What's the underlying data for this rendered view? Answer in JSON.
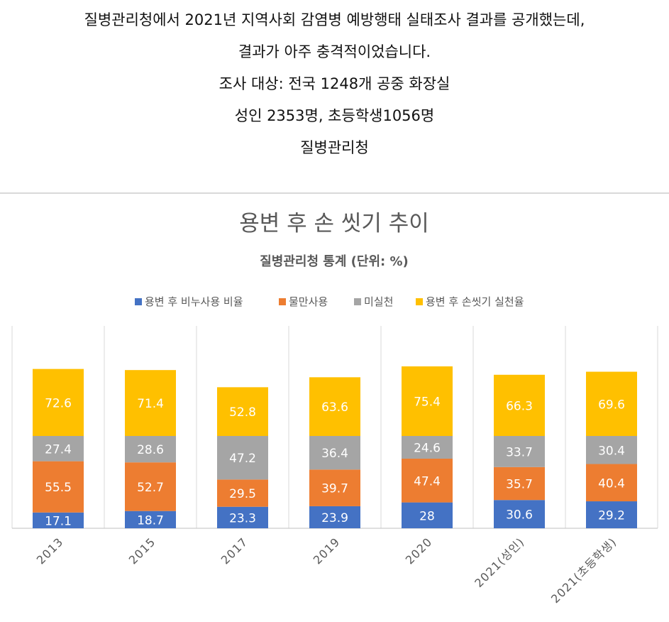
{
  "intro": {
    "lines": [
      "질병관리청에서 2021년 지역사회 감염병 예방행태 실태조사 결과를 공개했는데,",
      "결과가 아주 충격적이었습니다.",
      "조사 대상: 전국 1248개 공중 화장실",
      "성인 2353명, 초등학생1056명",
      "질병관리청"
    ]
  },
  "chart_data": {
    "type": "bar",
    "stacked": true,
    "title": "용변 후 손 씻기 추이",
    "subtitle": "질병관리청 통계 (단위: %)",
    "legend_position": "top",
    "categories": [
      "2013",
      "2015",
      "2017",
      "2019",
      "2020",
      "2021(성인)",
      "2021(초등학생)"
    ],
    "series": [
      {
        "name": "용변 후 비누사용 비율",
        "color": "#4472C4",
        "label_color": "#ffffff",
        "values": [
          17.1,
          18.7,
          23.3,
          23.9,
          28,
          30.6,
          29.2
        ]
      },
      {
        "name": "물만사용",
        "color": "#ED7D31",
        "label_color": "#ffffff",
        "values": [
          55.5,
          52.7,
          29.5,
          39.7,
          47.4,
          35.7,
          40.4
        ]
      },
      {
        "name": "미실천",
        "color": "#A5A5A5",
        "label_color": "#ffffff",
        "values": [
          27.4,
          28.6,
          47.2,
          36.4,
          24.6,
          33.7,
          30.4
        ]
      },
      {
        "name": "용변 후 손씻기 실천율",
        "color": "#FFC000",
        "label_color": "#ffffff",
        "values": [
          72.6,
          71.4,
          52.8,
          63.6,
          75.4,
          66.3,
          69.6
        ]
      }
    ],
    "value_labels": [
      [
        "17.1",
        "18.7",
        "23.3",
        "23.9",
        "28",
        "30.6",
        "29.2"
      ],
      [
        "55.5",
        "52.7",
        "29.5",
        "39.7",
        "47.4",
        "35.7",
        "40.4"
      ],
      [
        "27.4",
        "28.6",
        "47.2",
        "36.4",
        "24.6",
        "33.7",
        "30.4"
      ],
      [
        "72.6",
        "71.4",
        "52.8",
        "63.6",
        "75.4",
        "66.3",
        "69.6"
      ]
    ],
    "ylim": [
      0,
      180
    ],
    "grid": "vertical separators",
    "xlabel": "",
    "ylabel": ""
  }
}
